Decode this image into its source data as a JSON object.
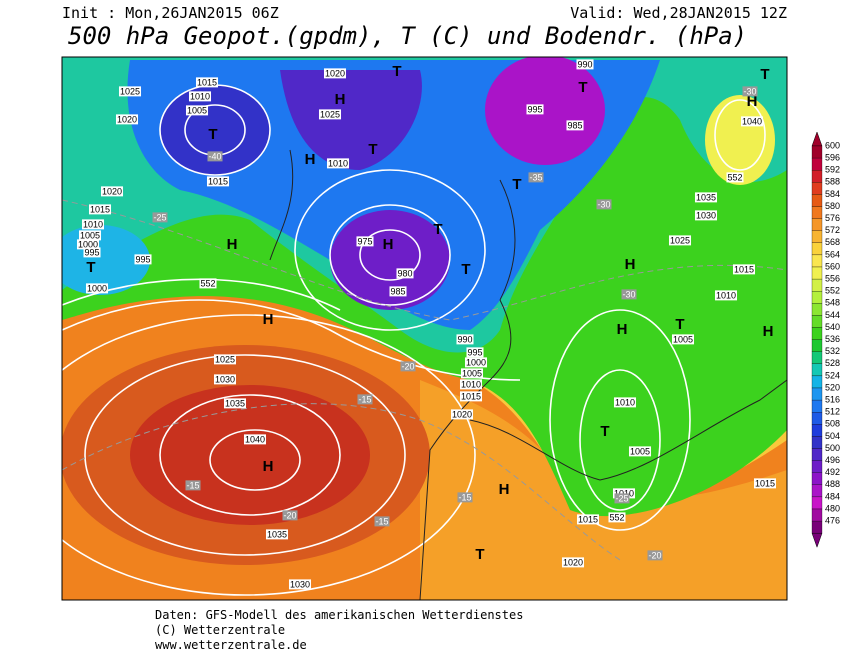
{
  "header": {
    "init": "Init : Mon,26JAN2015 06Z",
    "valid": "Valid: Wed,28JAN2015 12Z",
    "title": "500 hPa Geopot.(gpdm), T (C) und Bodendr. (hPa)"
  },
  "map": {
    "labels": [
      "1025",
      "1020",
      "1015",
      "1010",
      "1005",
      "T",
      "-40",
      "1015",
      "1020",
      "1015",
      "1010",
      "1005",
      "1000",
      "995",
      "995",
      "T",
      "1000",
      "H",
      "-25",
      "H",
      "1025",
      "1030",
      "1035",
      "1040",
      "H",
      "-15",
      "1035",
      "1030",
      "-20",
      "H",
      "T",
      "1020",
      "1025",
      "H",
      "1010",
      "T",
      "H",
      "975",
      "980",
      "985",
      "990",
      "995",
      "1000",
      "1005",
      "1010",
      "1015",
      "1020",
      "T",
      "T",
      "990",
      "995",
      "985",
      "T",
      "T",
      "-35",
      "-30",
      "H",
      "H",
      "T",
      "1035",
      "1030",
      "1025",
      "1040",
      "H",
      "T",
      "-30",
      "1015",
      "1010",
      "H",
      "1005",
      "1010",
      "1005",
      "1010",
      "1015",
      "1015",
      "-20",
      "1020",
      "H",
      "T",
      "-15",
      "-15",
      "-15",
      "-20",
      "552",
      "552",
      "552",
      "T",
      "-30",
      "-25"
    ]
  },
  "colorbar": {
    "levels": [
      "600",
      "596",
      "592",
      "588",
      "584",
      "580",
      "576",
      "572",
      "568",
      "564",
      "560",
      "556",
      "552",
      "548",
      "544",
      "540",
      "536",
      "532",
      "528",
      "524",
      "520",
      "516",
      "512",
      "508",
      "504",
      "500",
      "496",
      "492",
      "488",
      "484",
      "480",
      "476"
    ],
    "colors": [
      "#a0002a",
      "#c0003c",
      "#d21e28",
      "#e03c1e",
      "#e65a14",
      "#f0781e",
      "#f59628",
      "#f8b432",
      "#fad23c",
      "#fae650",
      "#f0f050",
      "#d2f046",
      "#b4f03c",
      "#8ce632",
      "#64dc28",
      "#3cd21e",
      "#1ec832",
      "#14c878",
      "#14c8b4",
      "#14b4e6",
      "#1e96f0",
      "#1e78f0",
      "#1e5ae6",
      "#1e3cdc",
      "#3232c8",
      "#5028c8",
      "#6e1ec8",
      "#8c14c8",
      "#aa14c8",
      "#c814c8",
      "#a00aa0",
      "#780078"
    ]
  },
  "footer": {
    "line1": "Daten: GFS-Modell des amerikanischen Wetterdienstes",
    "line2": "(C) Wetterzentrale",
    "line3": "www.wetterzentrale.de"
  }
}
